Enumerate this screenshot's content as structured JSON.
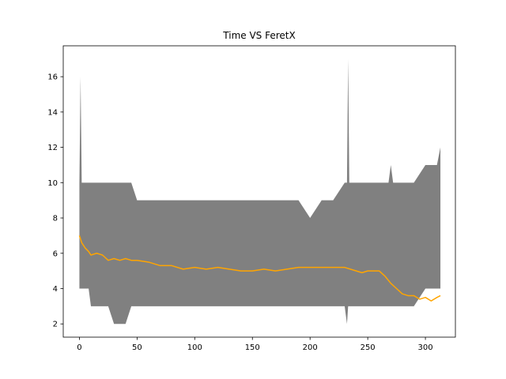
{
  "chart_data": {
    "type": "area",
    "title": "Time VS FeretX",
    "xlabel": "",
    "ylabel": "",
    "xlim": [
      -14,
      326
    ],
    "ylim": [
      1.25,
      17.75
    ],
    "xticks": [
      0,
      50,
      100,
      150,
      200,
      250,
      300
    ],
    "yticks": [
      2,
      4,
      6,
      8,
      10,
      12,
      14,
      16
    ],
    "grid": false,
    "legend": "none",
    "band_color": "#808080",
    "line_color": "#ffa500",
    "band": {
      "description": "min-max range",
      "x": [
        0,
        1,
        2,
        5,
        8,
        10,
        15,
        20,
        25,
        30,
        35,
        40,
        45,
        50,
        55,
        60,
        70,
        80,
        90,
        100,
        110,
        120,
        130,
        140,
        150,
        160,
        170,
        180,
        190,
        200,
        210,
        220,
        230,
        232,
        233,
        234,
        236,
        240,
        250,
        260,
        268,
        270,
        272,
        280,
        290,
        300,
        305,
        310,
        313
      ],
      "lower": [
        4,
        4,
        4,
        4,
        4,
        3,
        3,
        3,
        3,
        2,
        2,
        2,
        3,
        3,
        3,
        3,
        3,
        3,
        3,
        3,
        3,
        3,
        3,
        3,
        3,
        3,
        3,
        3,
        3,
        3,
        3,
        3,
        3,
        2,
        3,
        3,
        3,
        3,
        3,
        3,
        3,
        3,
        3,
        3,
        3,
        4,
        4,
        4,
        4
      ],
      "upper": [
        10,
        16,
        10,
        10,
        10,
        10,
        10,
        10,
        10,
        10,
        10,
        10,
        10,
        9,
        9,
        9,
        9,
        9,
        9,
        9,
        9,
        9,
        9,
        9,
        9,
        9,
        9,
        9,
        9,
        8,
        9,
        9,
        10,
        10,
        17,
        10,
        10,
        10,
        10,
        10,
        10,
        11,
        10,
        10,
        10,
        11,
        11,
        11,
        12
      ]
    },
    "series": [
      {
        "x": [
          0,
          2,
          5,
          8,
          10,
          15,
          20,
          25,
          30,
          35,
          40,
          45,
          50,
          60,
          70,
          80,
          90,
          100,
          110,
          120,
          130,
          140,
          150,
          160,
          170,
          180,
          190,
          200,
          210,
          220,
          230,
          240,
          245,
          250,
          255,
          260,
          265,
          270,
          275,
          280,
          285,
          290,
          295,
          300,
          305,
          310,
          313
        ],
        "values": [
          7.0,
          6.6,
          6.3,
          6.1,
          5.9,
          6.0,
          5.9,
          5.6,
          5.7,
          5.6,
          5.7,
          5.6,
          5.6,
          5.5,
          5.3,
          5.3,
          5.1,
          5.2,
          5.1,
          5.2,
          5.1,
          5.0,
          5.0,
          5.1,
          5.0,
          5.1,
          5.2,
          5.2,
          5.2,
          5.2,
          5.2,
          5.0,
          4.9,
          5.0,
          5.0,
          5.0,
          4.7,
          4.3,
          4.0,
          3.7,
          3.6,
          3.6,
          3.4,
          3.5,
          3.3,
          3.5,
          3.6
        ]
      }
    ]
  }
}
